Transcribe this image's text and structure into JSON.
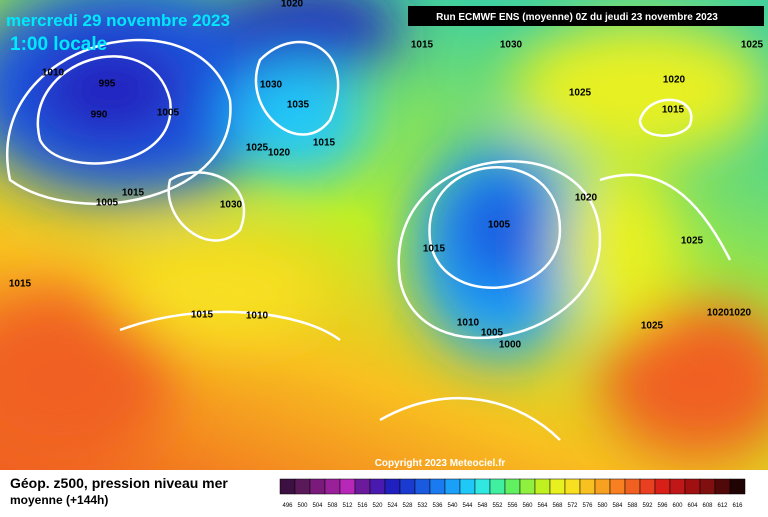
{
  "header": {
    "date": "mercredi 29 novembre 2023",
    "time": "1:00 locale",
    "run": "Run ECMWF ENS (moyenne) 0Z du jeudi 23 novembre 2023"
  },
  "isobar_labels": [
    "1020",
    "1015",
    "1030",
    "1025",
    "1010",
    "995",
    "1030",
    "1020",
    "990",
    "1005",
    "1035",
    "1025",
    "1015",
    "1025",
    "1020",
    "1015",
    "1015",
    "1005",
    "1030",
    "1020",
    "1005",
    "1015",
    "1025",
    "1015",
    "1015",
    "1010",
    "1020",
    "1020",
    "1010",
    "1005",
    "1000",
    "1025"
  ],
  "copyright": "Copyright 2023 Meteociel.fr",
  "footer": {
    "title": "Géop. z500, pression niveau mer",
    "subtitle": "moyenne  (+144h)"
  },
  "scale": [
    {
      "label": "496",
      "color": "#3c1040"
    },
    {
      "label": "500",
      "color": "#5a1a5a"
    },
    {
      "label": "504",
      "color": "#7a1a7a"
    },
    {
      "label": "508",
      "color": "#9a209a"
    },
    {
      "label": "512",
      "color": "#b828b8"
    },
    {
      "label": "516",
      "color": "#6a1a9a"
    },
    {
      "label": "520",
      "color": "#4a1ab0"
    },
    {
      "label": "524",
      "color": "#2020c0"
    },
    {
      "label": "528",
      "color": "#1a3ad0"
    },
    {
      "label": "532",
      "color": "#1a5ae0"
    },
    {
      "label": "536",
      "color": "#1a7af0"
    },
    {
      "label": "540",
      "color": "#1aa0f8"
    },
    {
      "label": "544",
      "color": "#20c8f8"
    },
    {
      "label": "548",
      "color": "#30e8e0"
    },
    {
      "label": "552",
      "color": "#40f0a0"
    },
    {
      "label": "556",
      "color": "#60f060"
    },
    {
      "label": "560",
      "color": "#90f040"
    },
    {
      "label": "564",
      "color": "#c0f020"
    },
    {
      "label": "568",
      "color": "#e8f020"
    },
    {
      "label": "572",
      "color": "#f8e020"
    },
    {
      "label": "576",
      "color": "#f8c020"
    },
    {
      "label": "580",
      "color": "#f8a020"
    },
    {
      "label": "584",
      "color": "#f88020"
    },
    {
      "label": "588",
      "color": "#f06020"
    },
    {
      "label": "592",
      "color": "#e84020"
    },
    {
      "label": "596",
      "color": "#d82018"
    },
    {
      "label": "600",
      "color": "#c01818"
    },
    {
      "label": "604",
      "color": "#a01010"
    },
    {
      "label": "608",
      "color": "#801010"
    },
    {
      "label": "612",
      "color": "#500808"
    },
    {
      "label": "616",
      "color": "#200404"
    }
  ]
}
